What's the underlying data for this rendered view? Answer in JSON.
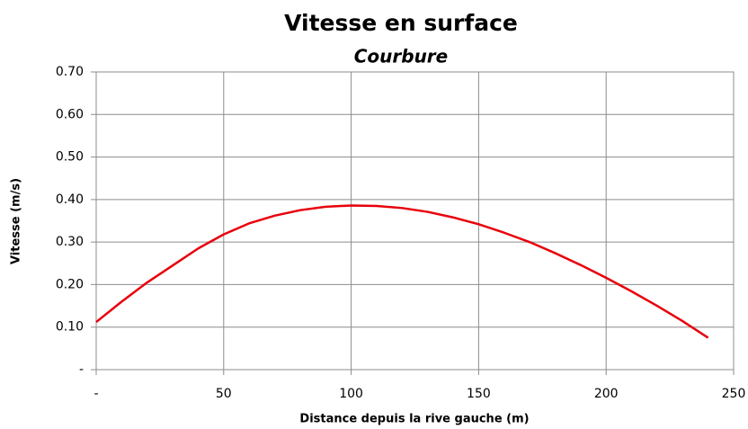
{
  "chart_data": {
    "type": "line",
    "title": "Vitesse en surface",
    "subtitle": "Courbure",
    "xlabel": "Distance depuis la rive gauche (m)",
    "ylabel": "Vitesse (m/s)",
    "x": [
      0,
      10,
      20,
      30,
      40,
      50,
      60,
      70,
      80,
      90,
      100,
      110,
      120,
      130,
      140,
      150,
      160,
      170,
      180,
      190,
      200,
      210,
      220,
      230,
      240
    ],
    "values": [
      0.112,
      0.16,
      0.205,
      0.245,
      0.285,
      0.318,
      0.344,
      0.362,
      0.375,
      0.383,
      0.386,
      0.385,
      0.38,
      0.371,
      0.358,
      0.342,
      0.322,
      0.3,
      0.274,
      0.246,
      0.216,
      0.184,
      0.15,
      0.114,
      0.075
    ],
    "color": "#e8000b",
    "xlim": [
      0,
      250
    ],
    "xticks": [
      {
        "value": 0,
        "label": "-"
      },
      50,
      100,
      150,
      200,
      250
    ],
    "ylim": [
      0,
      0.7
    ],
    "yticks": [
      {
        "value": 0,
        "label": "-"
      },
      {
        "value": 0.1,
        "label": "0.10"
      },
      {
        "value": 0.2,
        "label": "0.20"
      },
      {
        "value": 0.3,
        "label": "0.30"
      },
      {
        "value": 0.4,
        "label": "0.40"
      },
      {
        "value": 0.5,
        "label": "0.50"
      },
      {
        "value": 0.6,
        "label": "0.60"
      },
      {
        "value": 0.7,
        "label": "0.70"
      }
    ],
    "grid": true
  }
}
